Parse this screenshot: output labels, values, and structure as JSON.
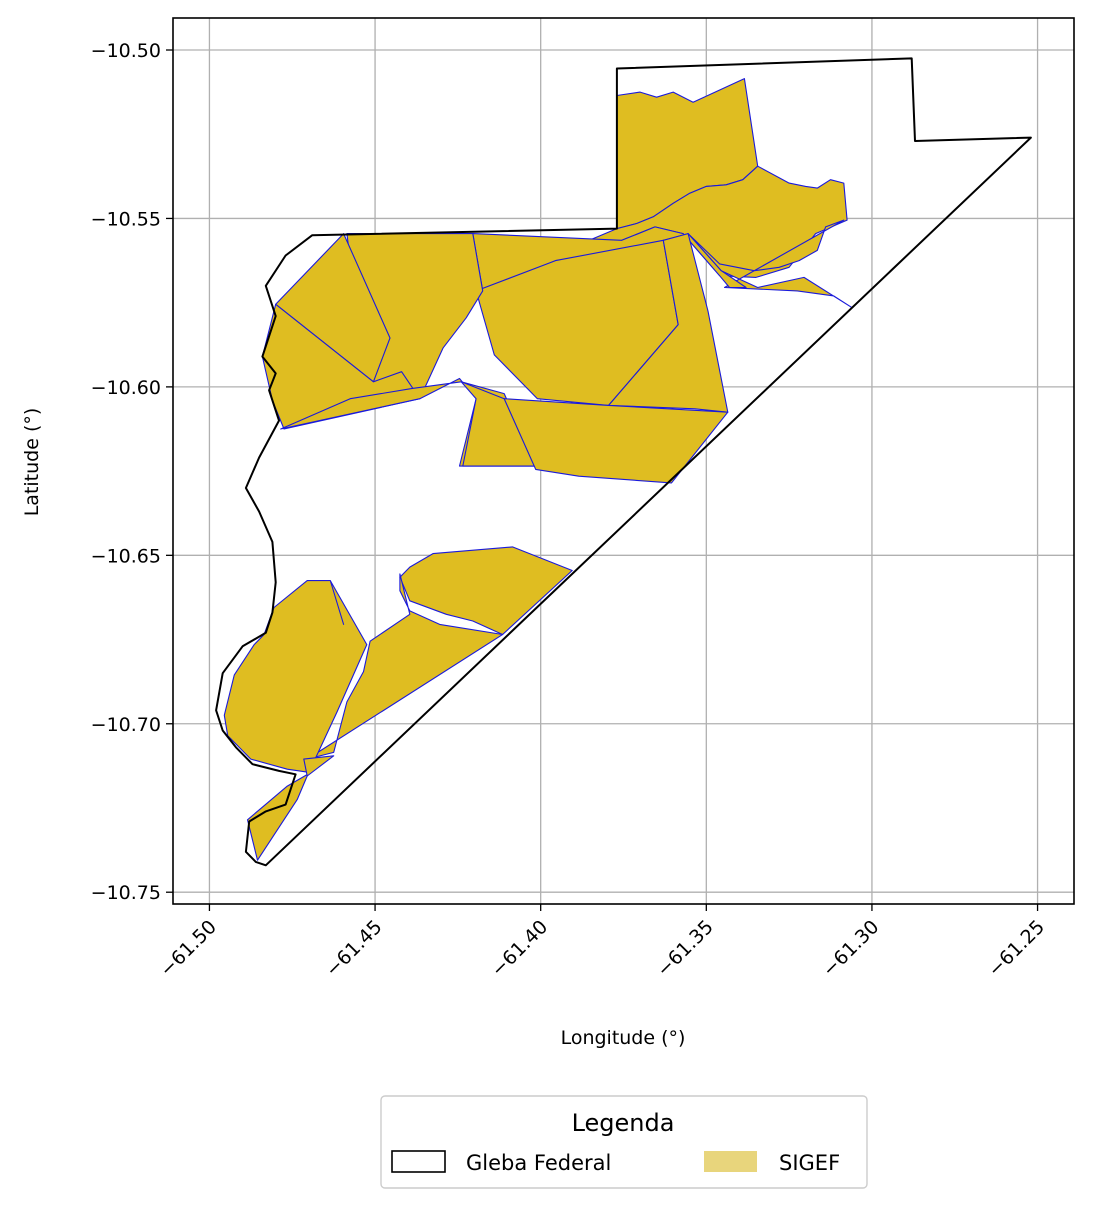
{
  "chart_data": {
    "type": "map",
    "xlabel": "Longitude (°)",
    "ylabel": "Latitude (°)",
    "xlim": [
      -61.511,
      -61.239
    ],
    "ylim": [
      -10.7535,
      -10.4905
    ],
    "x_ticks": [
      -61.5,
      -61.45,
      -61.4,
      -61.35,
      -61.3,
      -61.25
    ],
    "x_tick_labels": [
      "−61.50",
      "−61.45",
      "−61.40",
      "−61.35",
      "−61.30",
      "−61.25"
    ],
    "y_ticks": [
      -10.5,
      -10.55,
      -10.6,
      -10.65,
      -10.7,
      -10.75
    ],
    "y_tick_labels": [
      "−10.50",
      "−10.55",
      "−10.60",
      "−10.65",
      "−10.70",
      "−10.75"
    ],
    "grid": true,
    "legend": {
      "title": "Legenda",
      "placement": "bottom-center",
      "entries": [
        {
          "label": "Gleba Federal",
          "style": "outline"
        },
        {
          "label": "SIGEF",
          "style": "fill"
        }
      ]
    },
    "colors": {
      "gleba_outline": "#000000",
      "sigef_fill": "#dfbd21",
      "sigef_edge": "#1a1adb",
      "legend_sigef_patch": "#e8d57c",
      "grid": "#b0b0b0"
    },
    "gleba_boundary": [
      [
        -61.377,
        -10.5055
      ],
      [
        -61.288,
        -10.5025
      ],
      [
        -61.287,
        -10.527
      ],
      [
        -61.252,
        -10.526
      ],
      [
        -61.483,
        -10.742
      ],
      [
        -61.486,
        -10.741
      ],
      [
        -61.489,
        -10.738
      ],
      [
        -61.488,
        -10.729
      ],
      [
        -61.483,
        -10.726
      ],
      [
        -61.477,
        -10.724
      ],
      [
        -61.474,
        -10.715
      ],
      [
        -61.479,
        -10.714
      ],
      [
        -61.487,
        -10.712
      ],
      [
        -61.492,
        -10.707
      ],
      [
        -61.496,
        -10.702
      ],
      [
        -61.498,
        -10.696
      ],
      [
        -61.496,
        -10.685
      ],
      [
        -61.49,
        -10.677
      ],
      [
        -61.483,
        -10.673
      ],
      [
        -61.481,
        -10.667
      ],
      [
        -61.48,
        -10.658
      ],
      [
        -61.481,
        -10.646
      ],
      [
        -61.485,
        -10.637
      ],
      [
        -61.489,
        -10.63
      ],
      [
        -61.485,
        -10.621
      ],
      [
        -61.479,
        -10.61
      ],
      [
        -61.482,
        -10.601
      ],
      [
        -61.48,
        -10.596
      ],
      [
        -61.484,
        -10.591
      ],
      [
        -61.48,
        -10.579
      ],
      [
        -61.483,
        -10.57
      ],
      [
        -61.477,
        -10.561
      ],
      [
        -61.469,
        -10.555
      ],
      [
        -61.377,
        -10.553
      ]
    ],
    "sigef_parcels": [
      [
        [
          -61.377,
          -10.5135
        ],
        [
          -61.37,
          -10.5125
        ],
        [
          -61.365,
          -10.514
        ],
        [
          -61.36,
          -10.5125
        ],
        [
          -61.354,
          -10.5155
        ],
        [
          -61.3385,
          -10.5085
        ],
        [
          -61.3345,
          -10.5345
        ],
        [
          -61.339,
          -10.5385
        ],
        [
          -61.344,
          -10.54
        ],
        [
          -61.35,
          -10.5405
        ],
        [
          -61.355,
          -10.5425
        ],
        [
          -61.36,
          -10.5455
        ],
        [
          -61.366,
          -10.5495
        ],
        [
          -61.371,
          -10.5515
        ],
        [
          -61.377,
          -10.553
        ]
      ],
      [
        [
          -61.3345,
          -10.5345
        ],
        [
          -61.339,
          -10.5385
        ],
        [
          -61.344,
          -10.54
        ],
        [
          -61.35,
          -10.5405
        ],
        [
          -61.355,
          -10.5425
        ],
        [
          -61.36,
          -10.5455
        ],
        [
          -61.366,
          -10.5495
        ],
        [
          -61.371,
          -10.5515
        ],
        [
          -61.377,
          -10.553
        ],
        [
          -61.3975,
          -10.5615
        ],
        [
          -61.3825,
          -10.5605
        ],
        [
          -61.3755,
          -10.5565
        ],
        [
          -61.3655,
          -10.5525
        ],
        [
          -61.357,
          -10.5545
        ],
        [
          -61.346,
          -10.567
        ],
        [
          -61.335,
          -10.5675
        ],
        [
          -61.325,
          -10.5645
        ],
        [
          -61.317,
          -10.5545
        ],
        [
          -61.3075,
          -10.5505
        ],
        [
          -61.3085,
          -10.5395
        ],
        [
          -61.3125,
          -10.5385
        ],
        [
          -61.3165,
          -10.541
        ],
        [
          -61.32,
          -10.5405
        ],
        [
          -61.325,
          -10.5395
        ]
      ],
      [
        [
          -61.3085,
          -10.5505
        ],
        [
          -61.314,
          -10.5525
        ],
        [
          -61.3165,
          -10.5595
        ],
        [
          -61.322,
          -10.5625
        ],
        [
          -61.328,
          -10.5645
        ],
        [
          -61.3355,
          -10.5655
        ],
        [
          -61.346,
          -10.5635
        ],
        [
          -61.3555,
          -10.5545
        ],
        [
          -61.3455,
          -10.5655
        ],
        [
          -61.3345,
          -10.5705
        ],
        [
          -61.3205,
          -10.5675
        ],
        [
          -61.306,
          -10.5765
        ],
        [
          -61.3115,
          -10.573
        ],
        [
          -61.3225,
          -10.5715
        ],
        [
          -61.3445,
          -10.5705
        ]
      ],
      [
        [
          -61.4205,
          -10.5545
        ],
        [
          -61.3755,
          -10.5565
        ],
        [
          -61.3655,
          -10.5525
        ],
        [
          -61.357,
          -10.5545
        ],
        [
          -61.346,
          -10.567
        ],
        [
          -61.343,
          -10.5705
        ],
        [
          -61.338,
          -10.5705
        ],
        [
          -61.3455,
          -10.5655
        ],
        [
          -61.3555,
          -10.5545
        ],
        [
          -61.37,
          -10.5585
        ],
        [
          -61.381,
          -10.5615
        ],
        [
          -61.3955,
          -10.5625
        ],
        [
          -61.4175,
          -10.5715
        ]
      ],
      [
        [
          -61.4195,
          -10.5715
        ],
        [
          -61.3955,
          -10.5625
        ],
        [
          -61.363,
          -10.5565
        ],
        [
          -61.3585,
          -10.5815
        ],
        [
          -61.3795,
          -10.6055
        ],
        [
          -61.401,
          -10.6035
        ],
        [
          -61.414,
          -10.5905
        ]
      ],
      [
        [
          -61.363,
          -10.5565
        ],
        [
          -61.3585,
          -10.5815
        ],
        [
          -61.3795,
          -10.6055
        ],
        [
          -61.3535,
          -10.6065
        ],
        [
          -61.3435,
          -10.6075
        ],
        [
          -61.3495,
          -10.5775
        ],
        [
          -61.3555,
          -10.5545
        ]
      ],
      [
        [
          -61.4585,
          -10.5545
        ],
        [
          -61.4205,
          -10.5545
        ],
        [
          -61.4175,
          -10.5715
        ],
        [
          -61.4225,
          -10.5795
        ],
        [
          -61.4295,
          -10.5885
        ],
        [
          -61.4365,
          -10.6035
        ],
        [
          -61.4505,
          -10.5985
        ],
        [
          -61.4545,
          -10.5865
        ]
      ],
      [
        [
          -61.48,
          -10.5755
        ],
        [
          -61.4595,
          -10.5545
        ],
        [
          -61.4455,
          -10.5855
        ],
        [
          -61.4505,
          -10.5985
        ]
      ],
      [
        [
          -61.48,
          -10.5755
        ],
        [
          -61.4505,
          -10.5985
        ],
        [
          -61.442,
          -10.5955
        ],
        [
          -61.4365,
          -10.6035
        ],
        [
          -61.4775,
          -10.6125
        ],
        [
          -61.481,
          -10.604
        ],
        [
          -61.484,
          -10.591
        ]
      ],
      [
        [
          -61.4785,
          -10.6125
        ],
        [
          -61.4365,
          -10.6035
        ],
        [
          -61.4245,
          -10.5975
        ],
        [
          -61.4195,
          -10.6035
        ],
        [
          -61.4245,
          -10.6235
        ],
        [
          -61.4015,
          -10.6235
        ],
        [
          -61.411,
          -10.602
        ],
        [
          -61.424,
          -10.5985
        ],
        [
          -61.439,
          -10.6005
        ],
        [
          -61.4575,
          -10.6035
        ]
      ],
      [
        [
          -61.424,
          -10.5985
        ],
        [
          -61.411,
          -10.6035
        ],
        [
          -61.4015,
          -10.6235
        ],
        [
          -61.4235,
          -10.6235
        ],
        [
          -61.4195,
          -10.6035
        ]
      ],
      [
        [
          -61.411,
          -10.6035
        ],
        [
          -61.3795,
          -10.6055
        ],
        [
          -61.3435,
          -10.6075
        ],
        [
          -61.3605,
          -10.6285
        ],
        [
          -61.3885,
          -10.6265
        ],
        [
          -61.4015,
          -10.6245
        ]
      ],
      [
        [
          -61.4085,
          -10.6475
        ],
        [
          -61.3905,
          -10.6545
        ],
        [
          -61.4115,
          -10.6735
        ],
        [
          -61.4205,
          -10.6695
        ],
        [
          -61.4285,
          -10.6675
        ],
        [
          -61.4395,
          -10.6635
        ],
        [
          -61.4425,
          -10.6565
        ],
        [
          -61.4395,
          -10.6535
        ],
        [
          -61.4325,
          -10.6495
        ]
      ],
      [
        [
          -61.4425,
          -10.6555
        ],
        [
          -61.4395,
          -10.6675
        ],
        [
          -61.4515,
          -10.6755
        ],
        [
          -61.4535,
          -10.6845
        ],
        [
          -61.4585,
          -10.6935
        ],
        [
          -61.4625,
          -10.7085
        ],
        [
          -61.4705,
          -10.7105
        ],
        [
          -61.4115,
          -10.6735
        ],
        [
          -61.4305,
          -10.6705
        ],
        [
          -61.4395,
          -10.6665
        ],
        [
          -61.4425,
          -10.6605
        ]
      ],
      [
        [
          -61.4595,
          -10.6705
        ],
        [
          -61.4635,
          -10.6575
        ],
        [
          -61.4525,
          -10.6765
        ],
        [
          -61.4615,
          -10.6965
        ],
        [
          -61.4705,
          -10.7155
        ],
        [
          -61.4735,
          -10.7225
        ],
        [
          -61.4855,
          -10.7405
        ],
        [
          -61.4885,
          -10.7285
        ],
        [
          -61.4825,
          -10.7235
        ],
        [
          -61.4765,
          -10.7185
        ],
        [
          -61.4695,
          -10.7145
        ],
        [
          -61.4765,
          -10.7135
        ],
        [
          -61.4875,
          -10.7105
        ],
        [
          -61.4945,
          -10.7035
        ],
        [
          -61.4955,
          -10.6975
        ],
        [
          -61.4925,
          -10.6855
        ],
        [
          -61.4865,
          -10.6765
        ],
        [
          -61.4835,
          -10.6735
        ],
        [
          -61.4805,
          -10.6655
        ],
        [
          -61.4705,
          -10.6575
        ],
        [
          -61.4635,
          -10.6575
        ]
      ],
      [
        [
          -61.4705,
          -10.7155
        ],
        [
          -61.4625,
          -10.7095
        ],
        [
          -61.4715,
          -10.7105
        ]
      ]
    ]
  }
}
